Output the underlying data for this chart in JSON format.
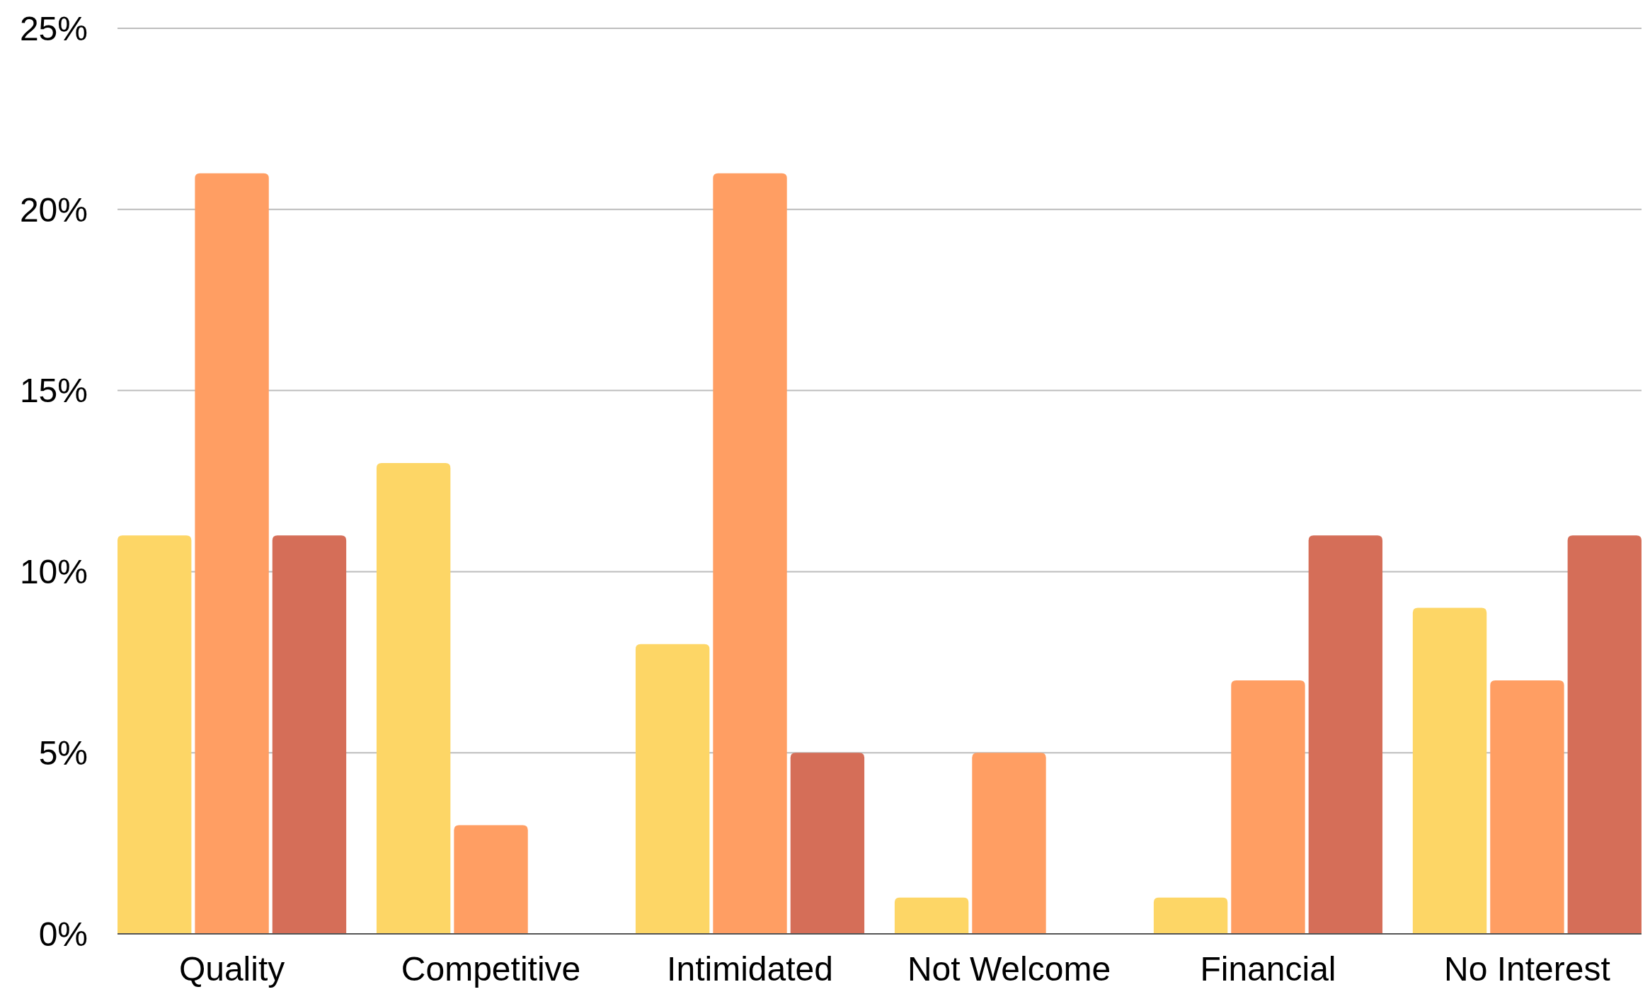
{
  "chart_data": {
    "type": "bar",
    "categories": [
      "Quality",
      "Competitive",
      "Intimidated",
      "Not Welcome",
      "Financial",
      "No Interest"
    ],
    "series": [
      {
        "color": "#fdd666",
        "values": [
          11,
          13,
          8,
          1,
          1,
          9
        ]
      },
      {
        "color": "#ff9e63",
        "values": [
          21,
          3,
          21,
          5,
          7,
          7
        ]
      },
      {
        "color": "#d56e58",
        "values": [
          11,
          0,
          5,
          0,
          11,
          11
        ]
      }
    ],
    "ylim": [
      0,
      25
    ],
    "yticks": [
      {
        "value": 0,
        "label": "0%"
      },
      {
        "value": 5,
        "label": "5%"
      },
      {
        "value": 10,
        "label": "10%"
      },
      {
        "value": 15,
        "label": "15%"
      },
      {
        "value": 20,
        "label": "20%"
      },
      {
        "value": 25,
        "label": "25%"
      }
    ],
    "grid": "y"
  }
}
